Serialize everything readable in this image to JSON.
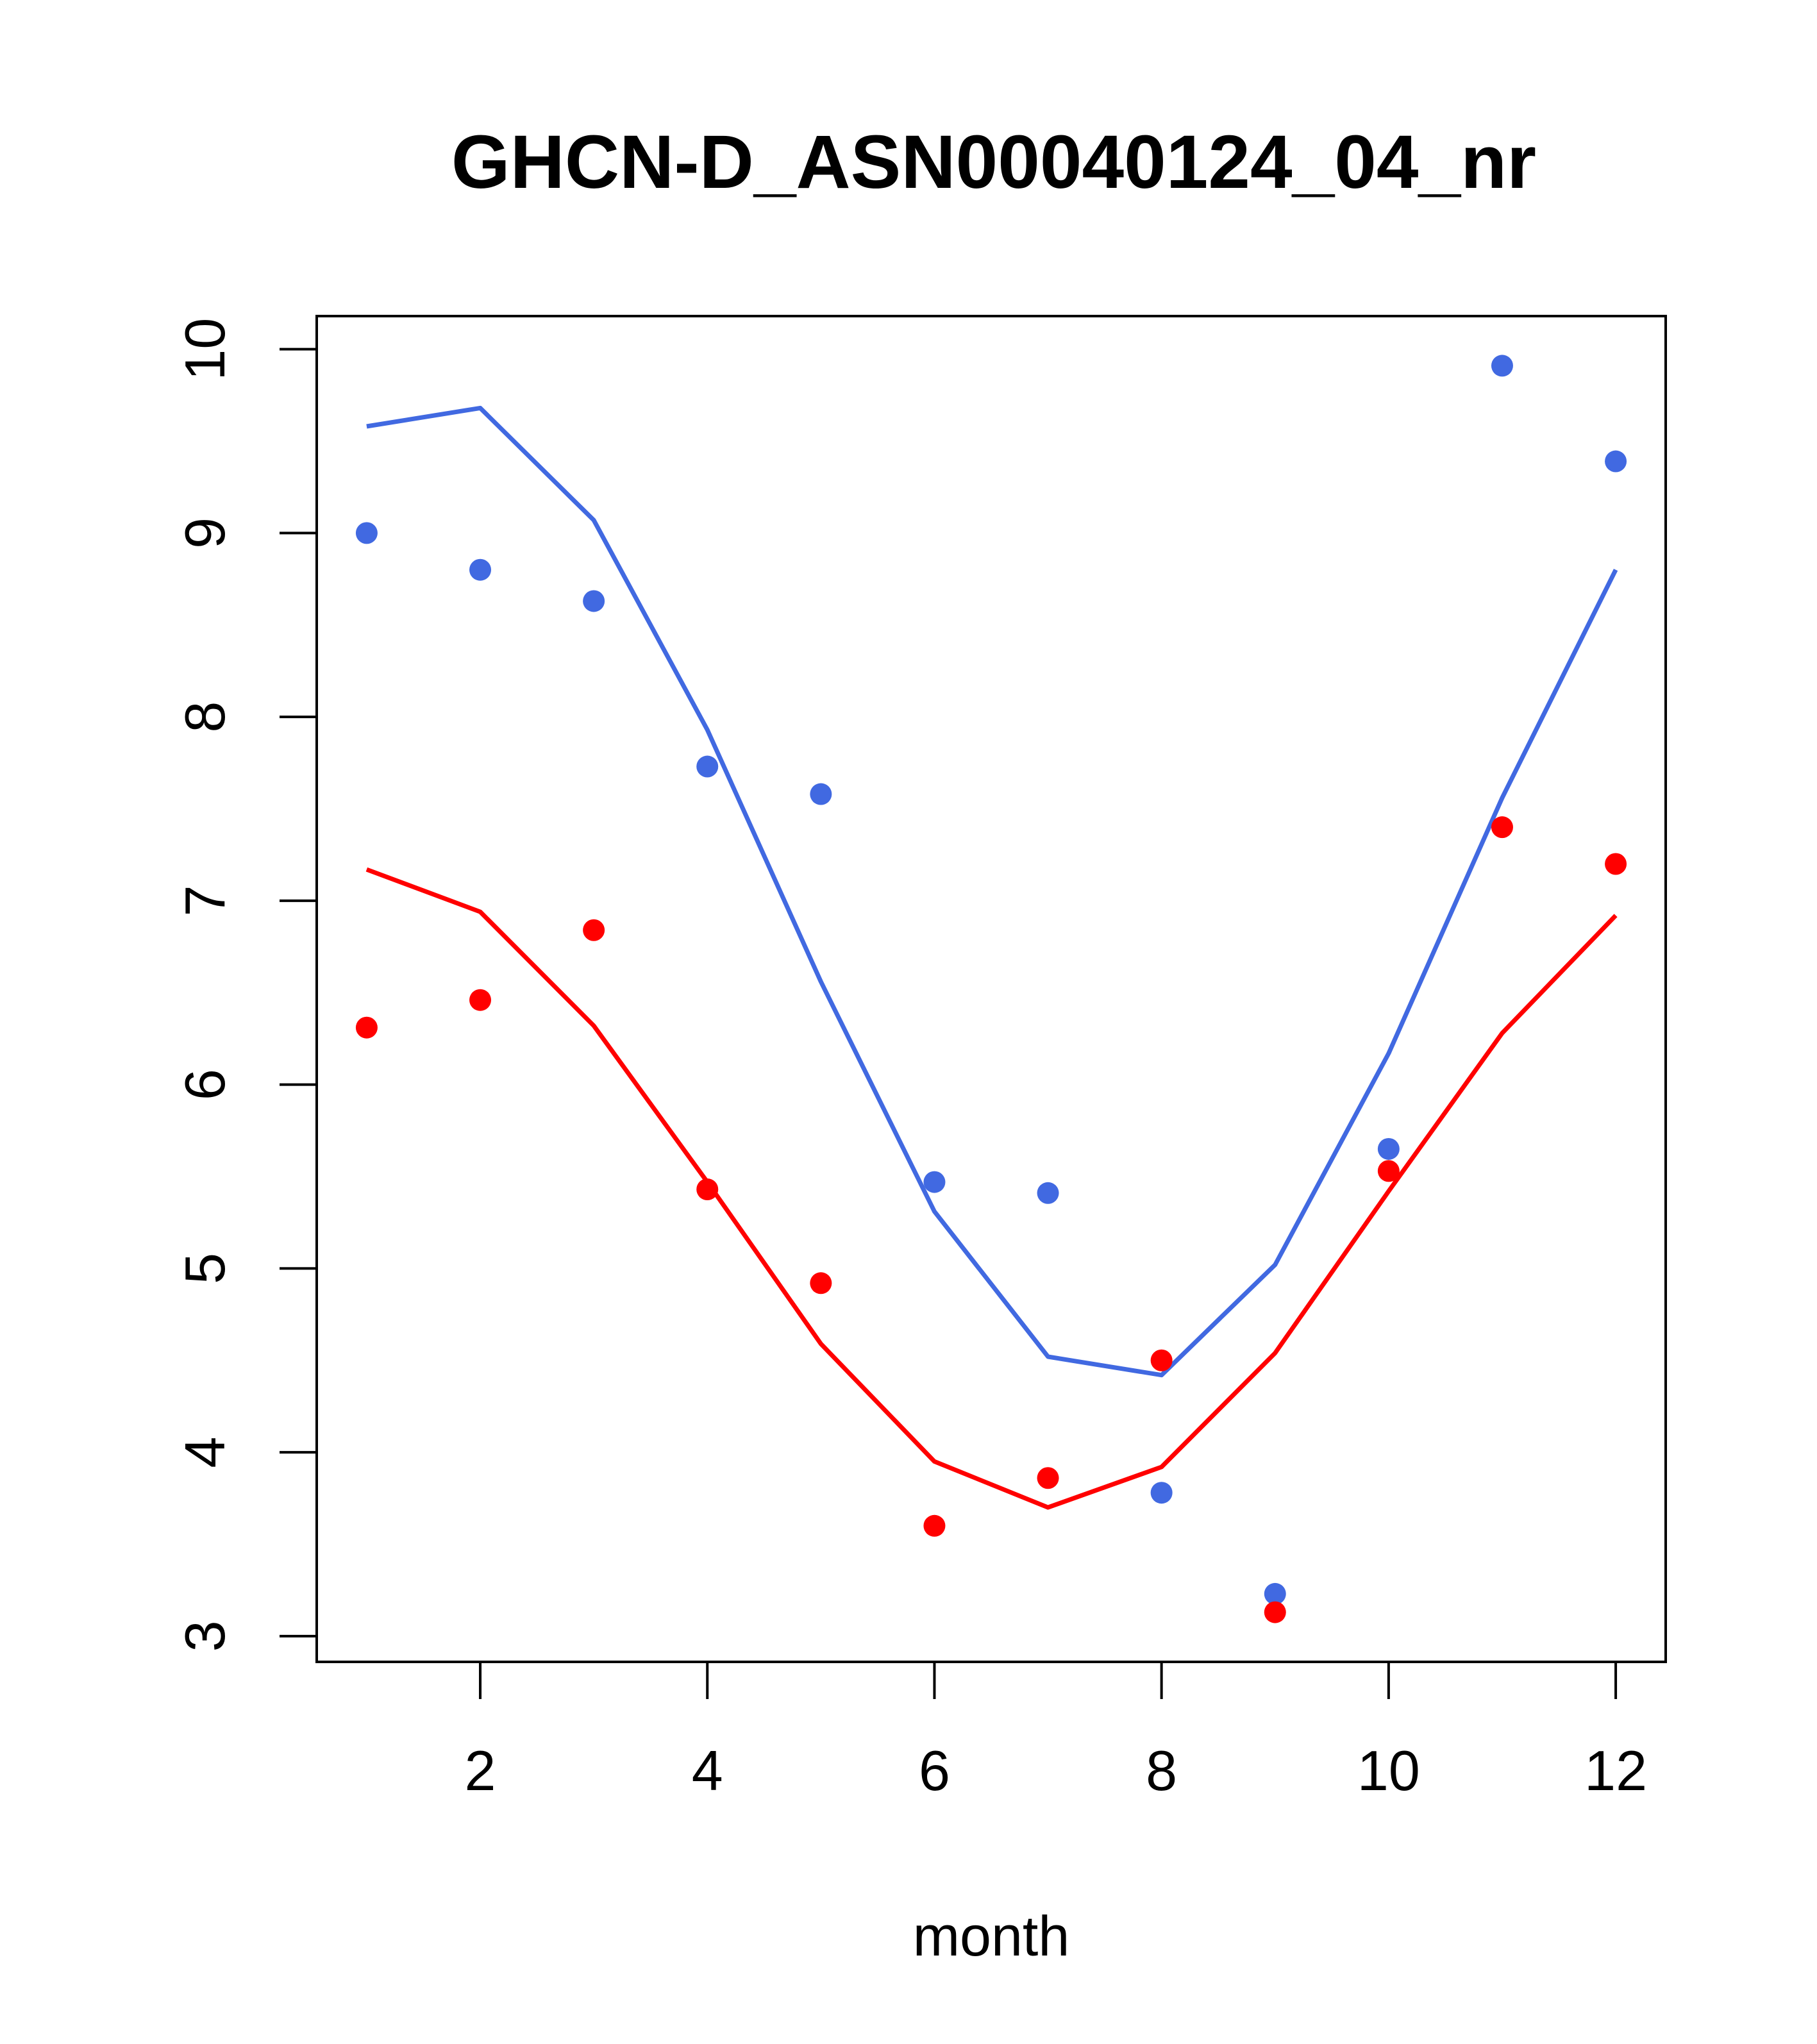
{
  "chart_data": {
    "type": "line",
    "title": "GHCN-D_ASN00040124_04_nr",
    "xlabel": "month",
    "ylabel": "",
    "xlim": [
      0.56,
      12.44
    ],
    "ylim": [
      2.86,
      10.18
    ],
    "x_ticks": [
      2,
      4,
      6,
      8,
      10,
      12
    ],
    "y_ticks": [
      3,
      4,
      5,
      6,
      7,
      8,
      9,
      10
    ],
    "grid": false,
    "legend": "none",
    "x": [
      1,
      2,
      3,
      4,
      5,
      6,
      7,
      8,
      9,
      10,
      11,
      12
    ],
    "series": [
      {
        "color": "#4169E1",
        "points": [
          9.0,
          8.8,
          8.63,
          7.73,
          7.58,
          5.47,
          5.41,
          3.78,
          3.23,
          5.65,
          9.91,
          9.39
        ],
        "line": [
          9.58,
          9.68,
          9.07,
          7.93,
          6.56,
          5.31,
          4.52,
          4.42,
          5.02,
          6.17,
          7.56,
          8.8
        ]
      },
      {
        "color": "#FF0000",
        "points": [
          6.31,
          6.46,
          6.84,
          5.43,
          4.92,
          3.6,
          3.86,
          4.5,
          3.13,
          5.53,
          7.4,
          7.2
        ],
        "line": [
          7.17,
          6.94,
          6.32,
          5.47,
          4.59,
          3.95,
          3.7,
          3.92,
          4.54,
          5.42,
          6.28,
          6.92
        ]
      }
    ]
  }
}
